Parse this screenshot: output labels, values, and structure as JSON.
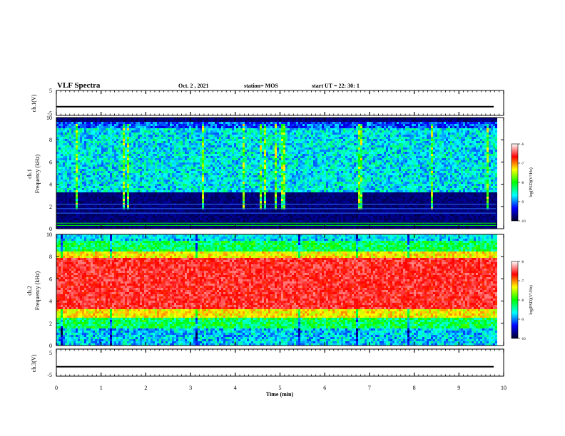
{
  "header": {
    "title": "VLF Spectra",
    "date": "Oct. 2 , 2021",
    "station": "station= MOS",
    "start": "start  UT =   22: 30: 1"
  },
  "chart_data": [
    {
      "id": "ch1-voltage",
      "type": "line",
      "ylabel": "ch.1(V)",
      "ylim": [
        -5,
        5
      ],
      "yticks": [
        "5",
        "-5"
      ],
      "x": [
        0,
        10
      ],
      "y": [
        -1.5,
        -1.5
      ],
      "color": "#000000"
    },
    {
      "id": "ch1-spectrogram",
      "type": "heatmap",
      "ylabel": "ch.1\nFrequency (kHz)",
      "ylim": [
        0,
        10
      ],
      "yticks": [
        "0",
        "2",
        "4",
        "6",
        "8",
        "10"
      ],
      "xlim": [
        0,
        10
      ],
      "background_band_khz": [
        3.2,
        9.0
      ],
      "horizontal_lines_khz": [
        0.3,
        0.5,
        1.4,
        1.8,
        2.2
      ],
      "colorbar": {
        "label": "log(PSD)(V²/Hz)",
        "range": [
          -10,
          -6
        ],
        "ticks": [
          "-6",
          "-7",
          "-8",
          "-9",
          "-10"
        ]
      }
    },
    {
      "id": "ch2-spectrogram",
      "type": "heatmap",
      "ylabel": "ch.2\nFrequency (kHz)",
      "ylim": [
        0,
        10
      ],
      "yticks": [
        "0",
        "2",
        "4",
        "6",
        "8",
        "10"
      ],
      "xlim": [
        0,
        10
      ],
      "band_center_khz": 5.5,
      "colorbar": {
        "label": "log(PSD)(V²/Hz)",
        "range": [
          -10,
          -6
        ],
        "ticks": [
          "-6",
          "-7",
          "-8",
          "-9",
          "-10"
        ]
      }
    },
    {
      "id": "ch3-voltage",
      "type": "line",
      "ylabel": "ch.3(V)",
      "ylim": [
        -5,
        5
      ],
      "yticks": [
        "5",
        "-5"
      ],
      "x": [
        0,
        10
      ],
      "y": [
        -1.5,
        -1.5
      ],
      "color": "#000000"
    }
  ],
  "x_axis": {
    "label": "Time (min)",
    "ticks": [
      "0",
      "1",
      "2",
      "3",
      "4",
      "5",
      "6",
      "7",
      "8",
      "9",
      "10"
    ],
    "range": [
      0,
      10
    ]
  },
  "colors": {
    "colormap": [
      "#00002a",
      "#0000ff",
      "#00ffff",
      "#00ff00",
      "#ffff00",
      "#ff0000",
      "#ffffff"
    ]
  }
}
